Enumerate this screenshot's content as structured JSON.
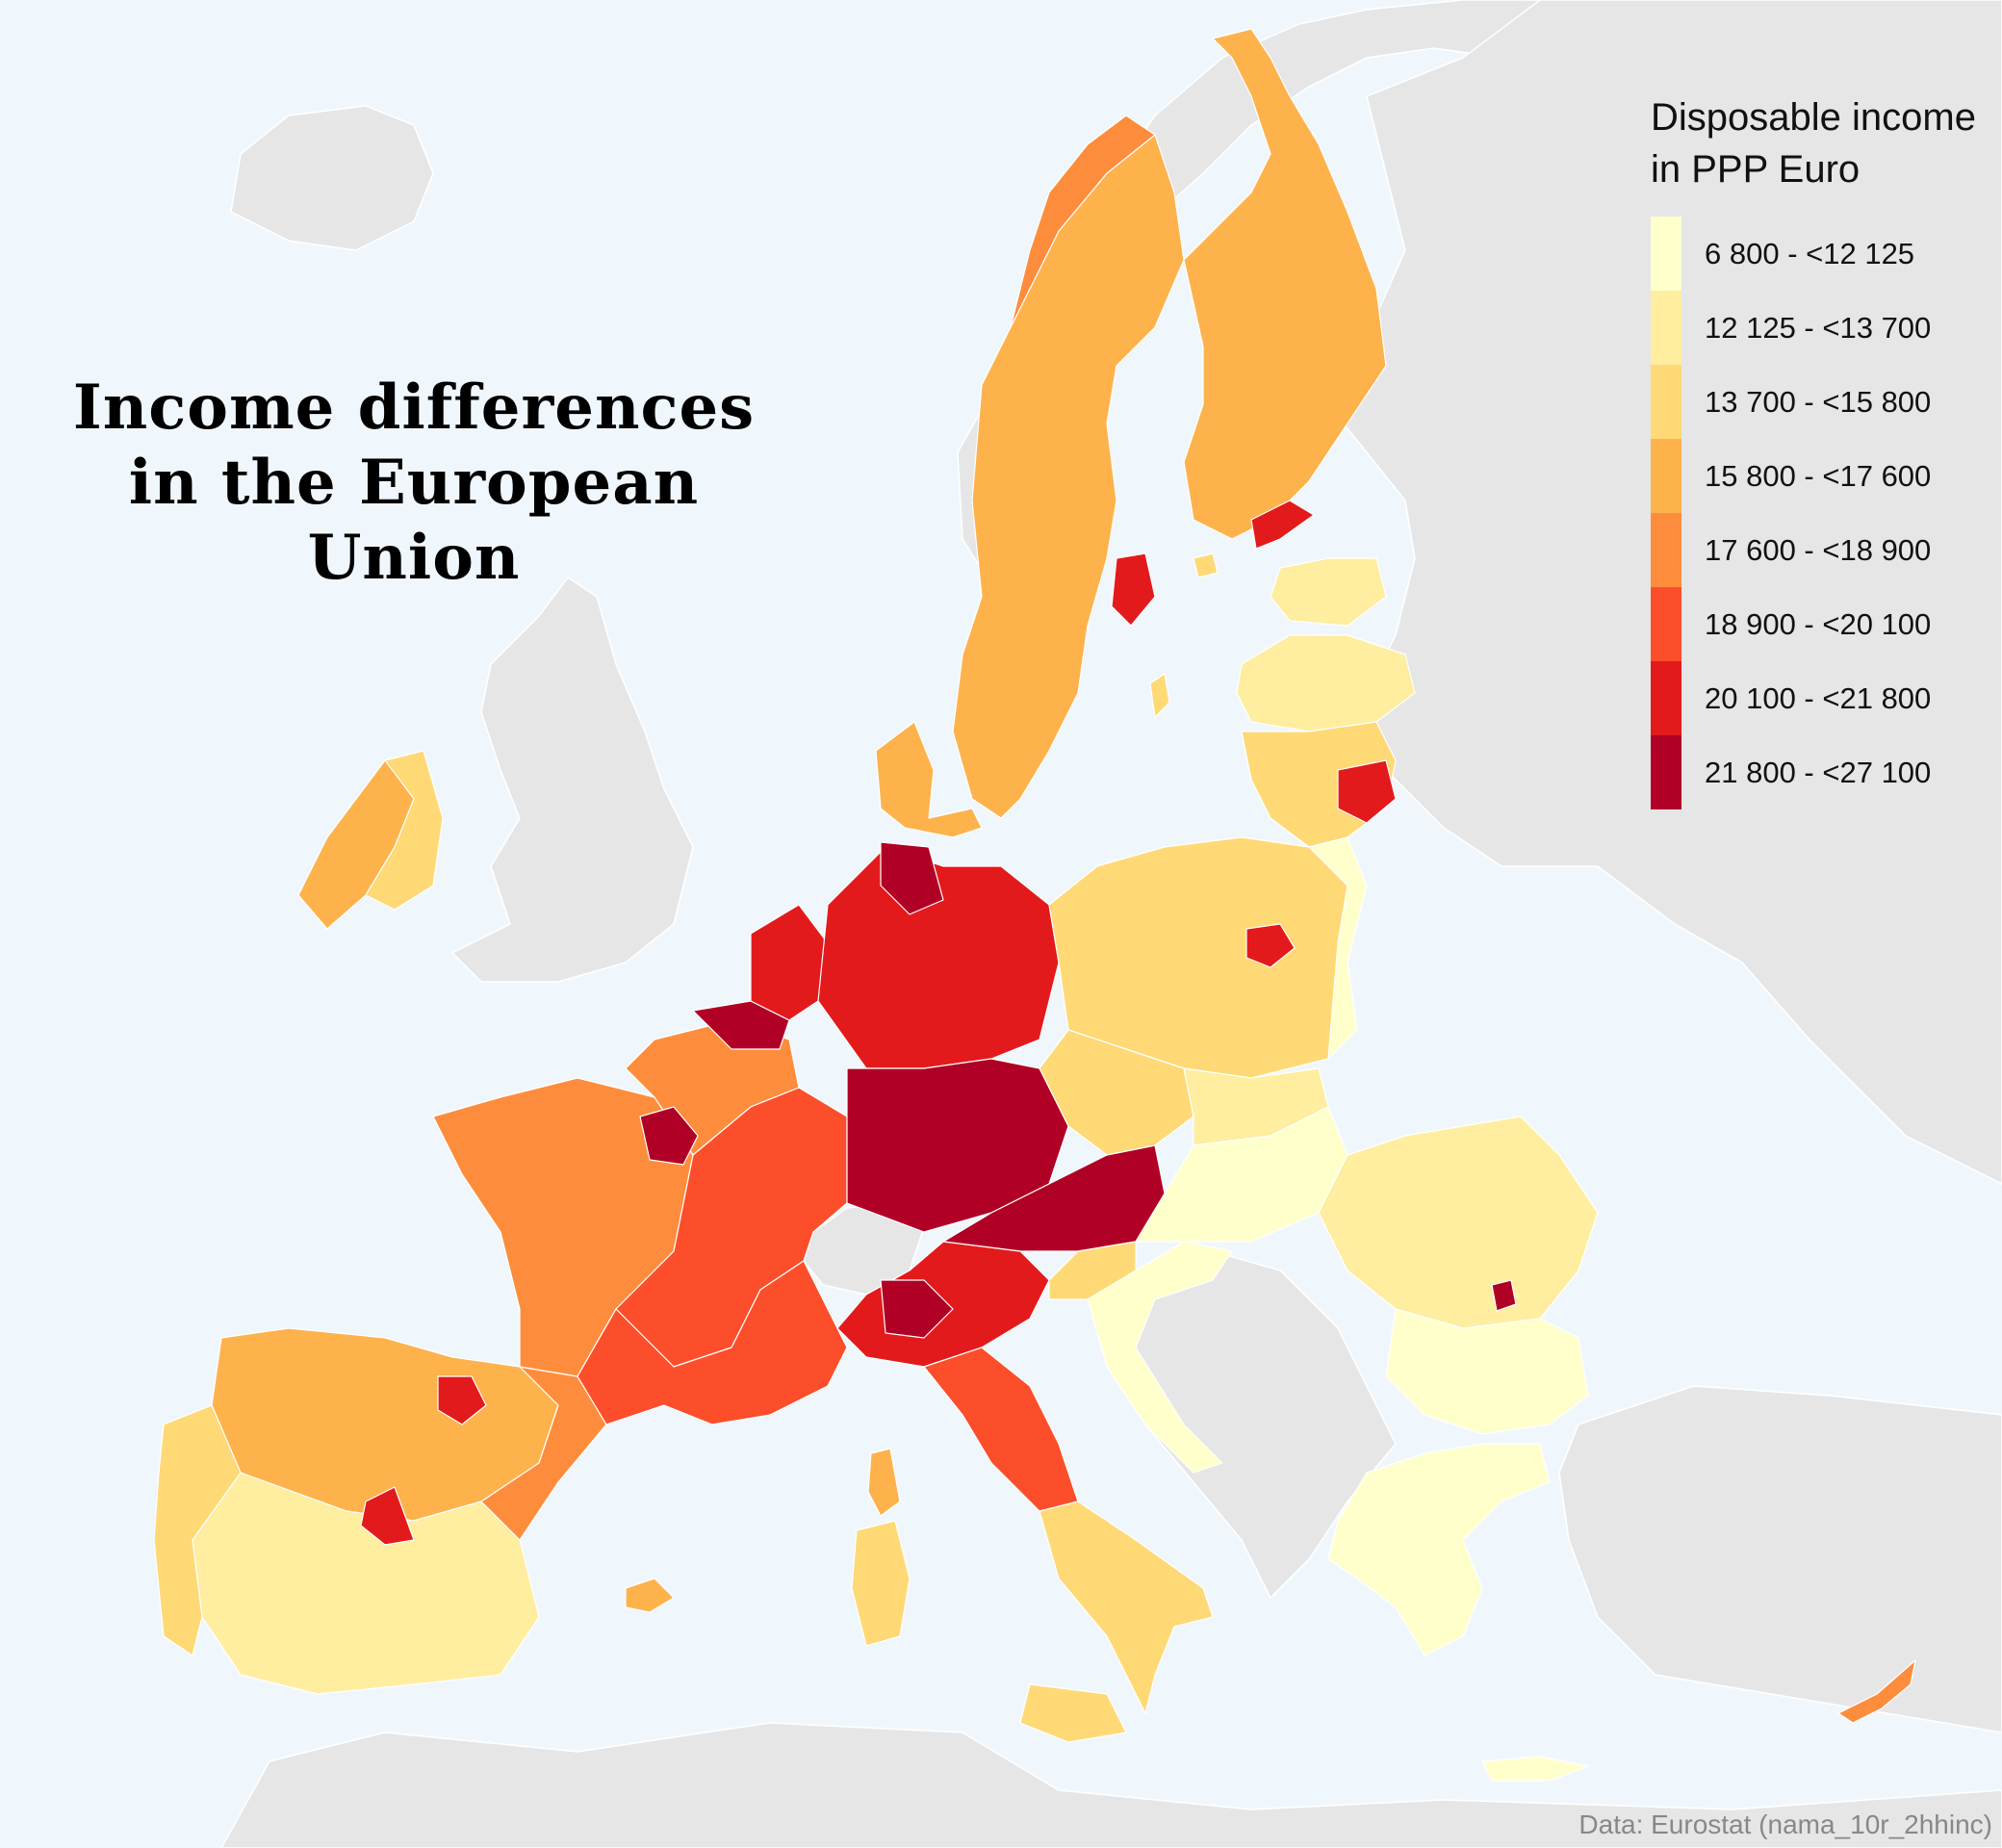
{
  "title": "Income differences in the European Union",
  "legend": {
    "title_line1": "Disposable income",
    "title_line2": "in PPP Euro",
    "classes": [
      {
        "label": "6 800 - <12 125",
        "color": "#ffffcc"
      },
      {
        "label": "12 125 - <13 700",
        "color": "#ffeda0"
      },
      {
        "label": "13 700 - <15 800",
        "color": "#fed976"
      },
      {
        "label": "15 800 - <17 600",
        "color": "#feb24c"
      },
      {
        "label": "17 600 - <18 900",
        "color": "#fd8d3c"
      },
      {
        "label": "18 900 - <20 100",
        "color": "#fc4e2a"
      },
      {
        "label": "20 100 - <21 800",
        "color": "#e31a1c"
      },
      {
        "label": "21 800 - <27 100",
        "color": "#b10026"
      }
    ]
  },
  "source": "Data: Eurostat (nama_10r_2hhinc)",
  "colors": {
    "sea": "#f0f7fc",
    "non_eu_land": "#e6e6e6"
  }
}
